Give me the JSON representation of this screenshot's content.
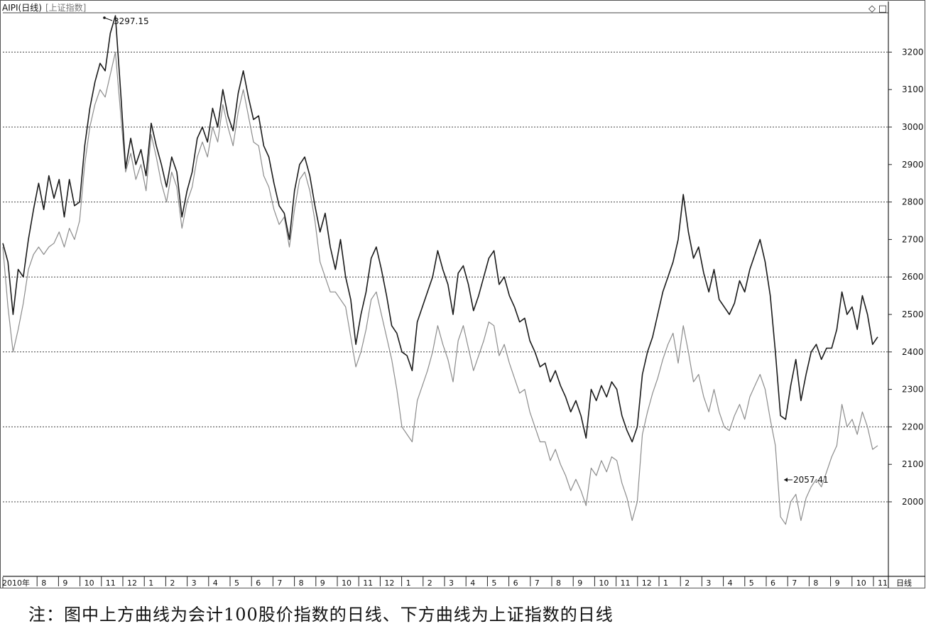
{
  "chart_data": {
    "type": "line",
    "header_title": "AIPI(日线)",
    "header_subtitle": "[上证指数]",
    "y_ticks": [
      2000,
      2100,
      2200,
      2300,
      2400,
      2500,
      2600,
      2700,
      2800,
      2900,
      3000,
      3100,
      3200
    ],
    "ylim": [
      1810,
      3330
    ],
    "dashed_grid_at": [
      2000,
      2200,
      2400,
      2600,
      2800,
      3000,
      3200
    ],
    "x_labels": [
      "2010年",
      "8",
      "9",
      "10",
      "11",
      "12",
      "1",
      "2",
      "3",
      "4",
      "5",
      "6",
      "7",
      "8",
      "9",
      "10",
      "11",
      "12",
      "1",
      "2",
      "3",
      "4",
      "5",
      "6",
      "7",
      "8",
      "9",
      "10",
      "11",
      "12",
      "1",
      "2",
      "3",
      "4",
      "5",
      "6",
      "7",
      "8",
      "9",
      "10",
      "11"
    ],
    "period_label": "日线",
    "annotation_high": "3297.15",
    "annotation_low": "2057.41",
    "series": [
      {
        "color": "#1a1a1a",
        "values": [
          2690,
          2640,
          2500,
          2620,
          2600,
          2700,
          2780,
          2850,
          2780,
          2870,
          2810,
          2860,
          2760,
          2860,
          2790,
          2800,
          2950,
          3050,
          3120,
          3170,
          3150,
          3250,
          3297,
          3100,
          2890,
          2970,
          2900,
          2940,
          2870,
          3010,
          2950,
          2900,
          2840,
          2920,
          2880,
          2760,
          2830,
          2880,
          2970,
          3000,
          2960,
          3050,
          3000,
          3100,
          3030,
          2990,
          3090,
          3150,
          3080,
          3020,
          3030,
          2950,
          2920,
          2850,
          2790,
          2770,
          2700,
          2830,
          2900,
          2920,
          2870,
          2790,
          2720,
          2770,
          2680,
          2620,
          2700,
          2600,
          2540,
          2420,
          2500,
          2560,
          2650,
          2680,
          2620,
          2550,
          2470,
          2450,
          2400,
          2390,
          2350,
          2480,
          2520,
          2560,
          2600,
          2670,
          2620,
          2580,
          2500,
          2610,
          2630,
          2580,
          2510,
          2550,
          2600,
          2650,
          2670,
          2580,
          2600,
          2550,
          2520,
          2480,
          2490,
          2430,
          2400,
          2360,
          2370,
          2320,
          2350,
          2310,
          2280,
          2240,
          2270,
          2230,
          2170,
          2300,
          2270,
          2310,
          2280,
          2320,
          2300,
          2230,
          2190,
          2160,
          2200,
          2340,
          2400,
          2440,
          2500,
          2560,
          2600,
          2640,
          2700,
          2820,
          2720,
          2650,
          2680,
          2610,
          2560,
          2620,
          2540,
          2520,
          2500,
          2530,
          2590,
          2560,
          2620,
          2660,
          2700,
          2640,
          2550,
          2400,
          2230,
          2220,
          2310,
          2380,
          2270,
          2340,
          2400,
          2420,
          2380,
          2410,
          2410,
          2460,
          2560,
          2500,
          2520,
          2460,
          2550,
          2500,
          2420,
          2440
        ]
      },
      {
        "color": "#8c8c8c",
        "values": [
          2680,
          2520,
          2400,
          2460,
          2530,
          2620,
          2660,
          2680,
          2660,
          2680,
          2690,
          2720,
          2680,
          2730,
          2700,
          2750,
          2900,
          3000,
          3060,
          3100,
          3080,
          3140,
          3200,
          3040,
          2880,
          2930,
          2860,
          2900,
          2830,
          2980,
          2920,
          2850,
          2800,
          2880,
          2840,
          2730,
          2800,
          2840,
          2920,
          2960,
          2920,
          3000,
          2960,
          3060,
          3000,
          2950,
          3040,
          3100,
          3030,
          2960,
          2950,
          2870,
          2840,
          2780,
          2740,
          2760,
          2680,
          2780,
          2860,
          2880,
          2830,
          2750,
          2640,
          2600,
          2560,
          2560,
          2540,
          2520,
          2440,
          2360,
          2400,
          2460,
          2540,
          2560,
          2500,
          2440,
          2380,
          2300,
          2200,
          2180,
          2160,
          2270,
          2310,
          2350,
          2400,
          2470,
          2420,
          2380,
          2320,
          2430,
          2470,
          2410,
          2350,
          2390,
          2430,
          2480,
          2470,
          2390,
          2420,
          2370,
          2330,
          2290,
          2300,
          2240,
          2200,
          2160,
          2160,
          2110,
          2140,
          2100,
          2070,
          2030,
          2060,
          2030,
          1990,
          2090,
          2070,
          2110,
          2080,
          2120,
          2110,
          2050,
          2010,
          1950,
          2000,
          2180,
          2240,
          2290,
          2330,
          2380,
          2420,
          2450,
          2370,
          2470,
          2400,
          2320,
          2340,
          2280,
          2240,
          2300,
          2240,
          2200,
          2190,
          2230,
          2260,
          2220,
          2280,
          2310,
          2340,
          2300,
          2220,
          2150,
          1960,
          1940,
          2000,
          2020,
          1950,
          2010,
          2040,
          2060,
          2040,
          2080,
          2120,
          2150,
          2260,
          2200,
          2220,
          2180,
          2240,
          2200,
          2140,
          2150
        ]
      }
    ]
  },
  "caption": "注：图中上方曲线为会计100股价指数的日线、下方曲线为上证指数的日线",
  "ui": {
    "diamond_icon": "◇",
    "square_icon": "□"
  }
}
